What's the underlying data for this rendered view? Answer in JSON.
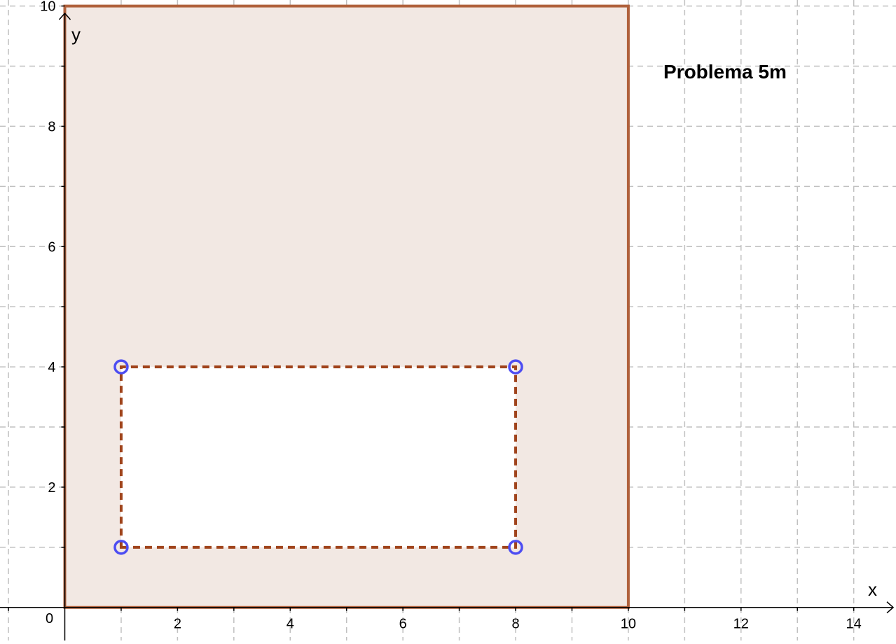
{
  "title": "Problema 5m",
  "axes": {
    "x_label": "x",
    "y_label": "y",
    "origin_label": "0",
    "x_ticks": [
      "2",
      "4",
      "6",
      "8",
      "10",
      "12",
      "14"
    ],
    "y_ticks": [
      "2",
      "4",
      "6",
      "8",
      "10"
    ],
    "x_range": [
      -1.15,
      14.75
    ],
    "y_range": [
      -0.55,
      10.1
    ],
    "grid": true,
    "grid_step": 1
  },
  "shapes": {
    "outer_square": {
      "vertices": [
        [
          0,
          0
        ],
        [
          10,
          0
        ],
        [
          10,
          10
        ],
        [
          0,
          10
        ]
      ],
      "fill": "#f2e8e3",
      "stroke": "#b0613c"
    },
    "inner_rectangle": {
      "vertices": [
        [
          1,
          1
        ],
        [
          8,
          1
        ],
        [
          8,
          4
        ],
        [
          1,
          4
        ]
      ],
      "fill": "#ffffff",
      "stroke": "#a0441c",
      "style": "dashed"
    },
    "points": [
      {
        "x": 1,
        "y": 4
      },
      {
        "x": 8,
        "y": 4
      },
      {
        "x": 1,
        "y": 1
      },
      {
        "x": 8,
        "y": 1
      }
    ],
    "point_color": "#4d4df2"
  },
  "colors": {
    "grid": "#c0c0c0",
    "axes": "#000000"
  }
}
